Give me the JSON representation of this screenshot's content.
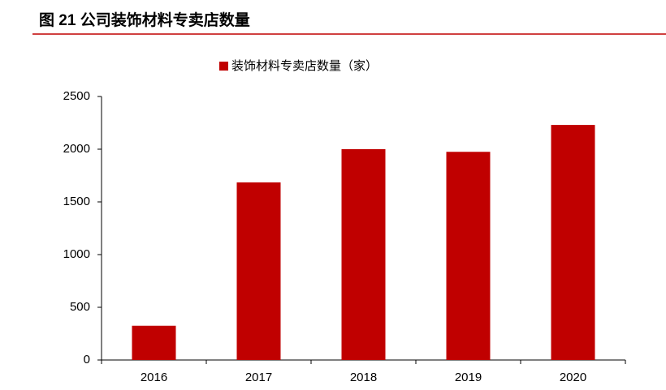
{
  "chart_data": {
    "type": "bar",
    "title": "图 21 公司装饰材料专卖店数量",
    "categories": [
      "2016",
      "2017",
      "2018",
      "2019",
      "2020"
    ],
    "series": [
      {
        "name": "装饰材料专卖店数量（家）",
        "color": "#c00000",
        "values": [
          325,
          1685,
          2000,
          1975,
          2230
        ]
      }
    ],
    "ylim": [
      0,
      2500
    ],
    "yticks": [
      0,
      500,
      1000,
      1500,
      2000,
      2500
    ],
    "grid": false,
    "legend": "top"
  }
}
